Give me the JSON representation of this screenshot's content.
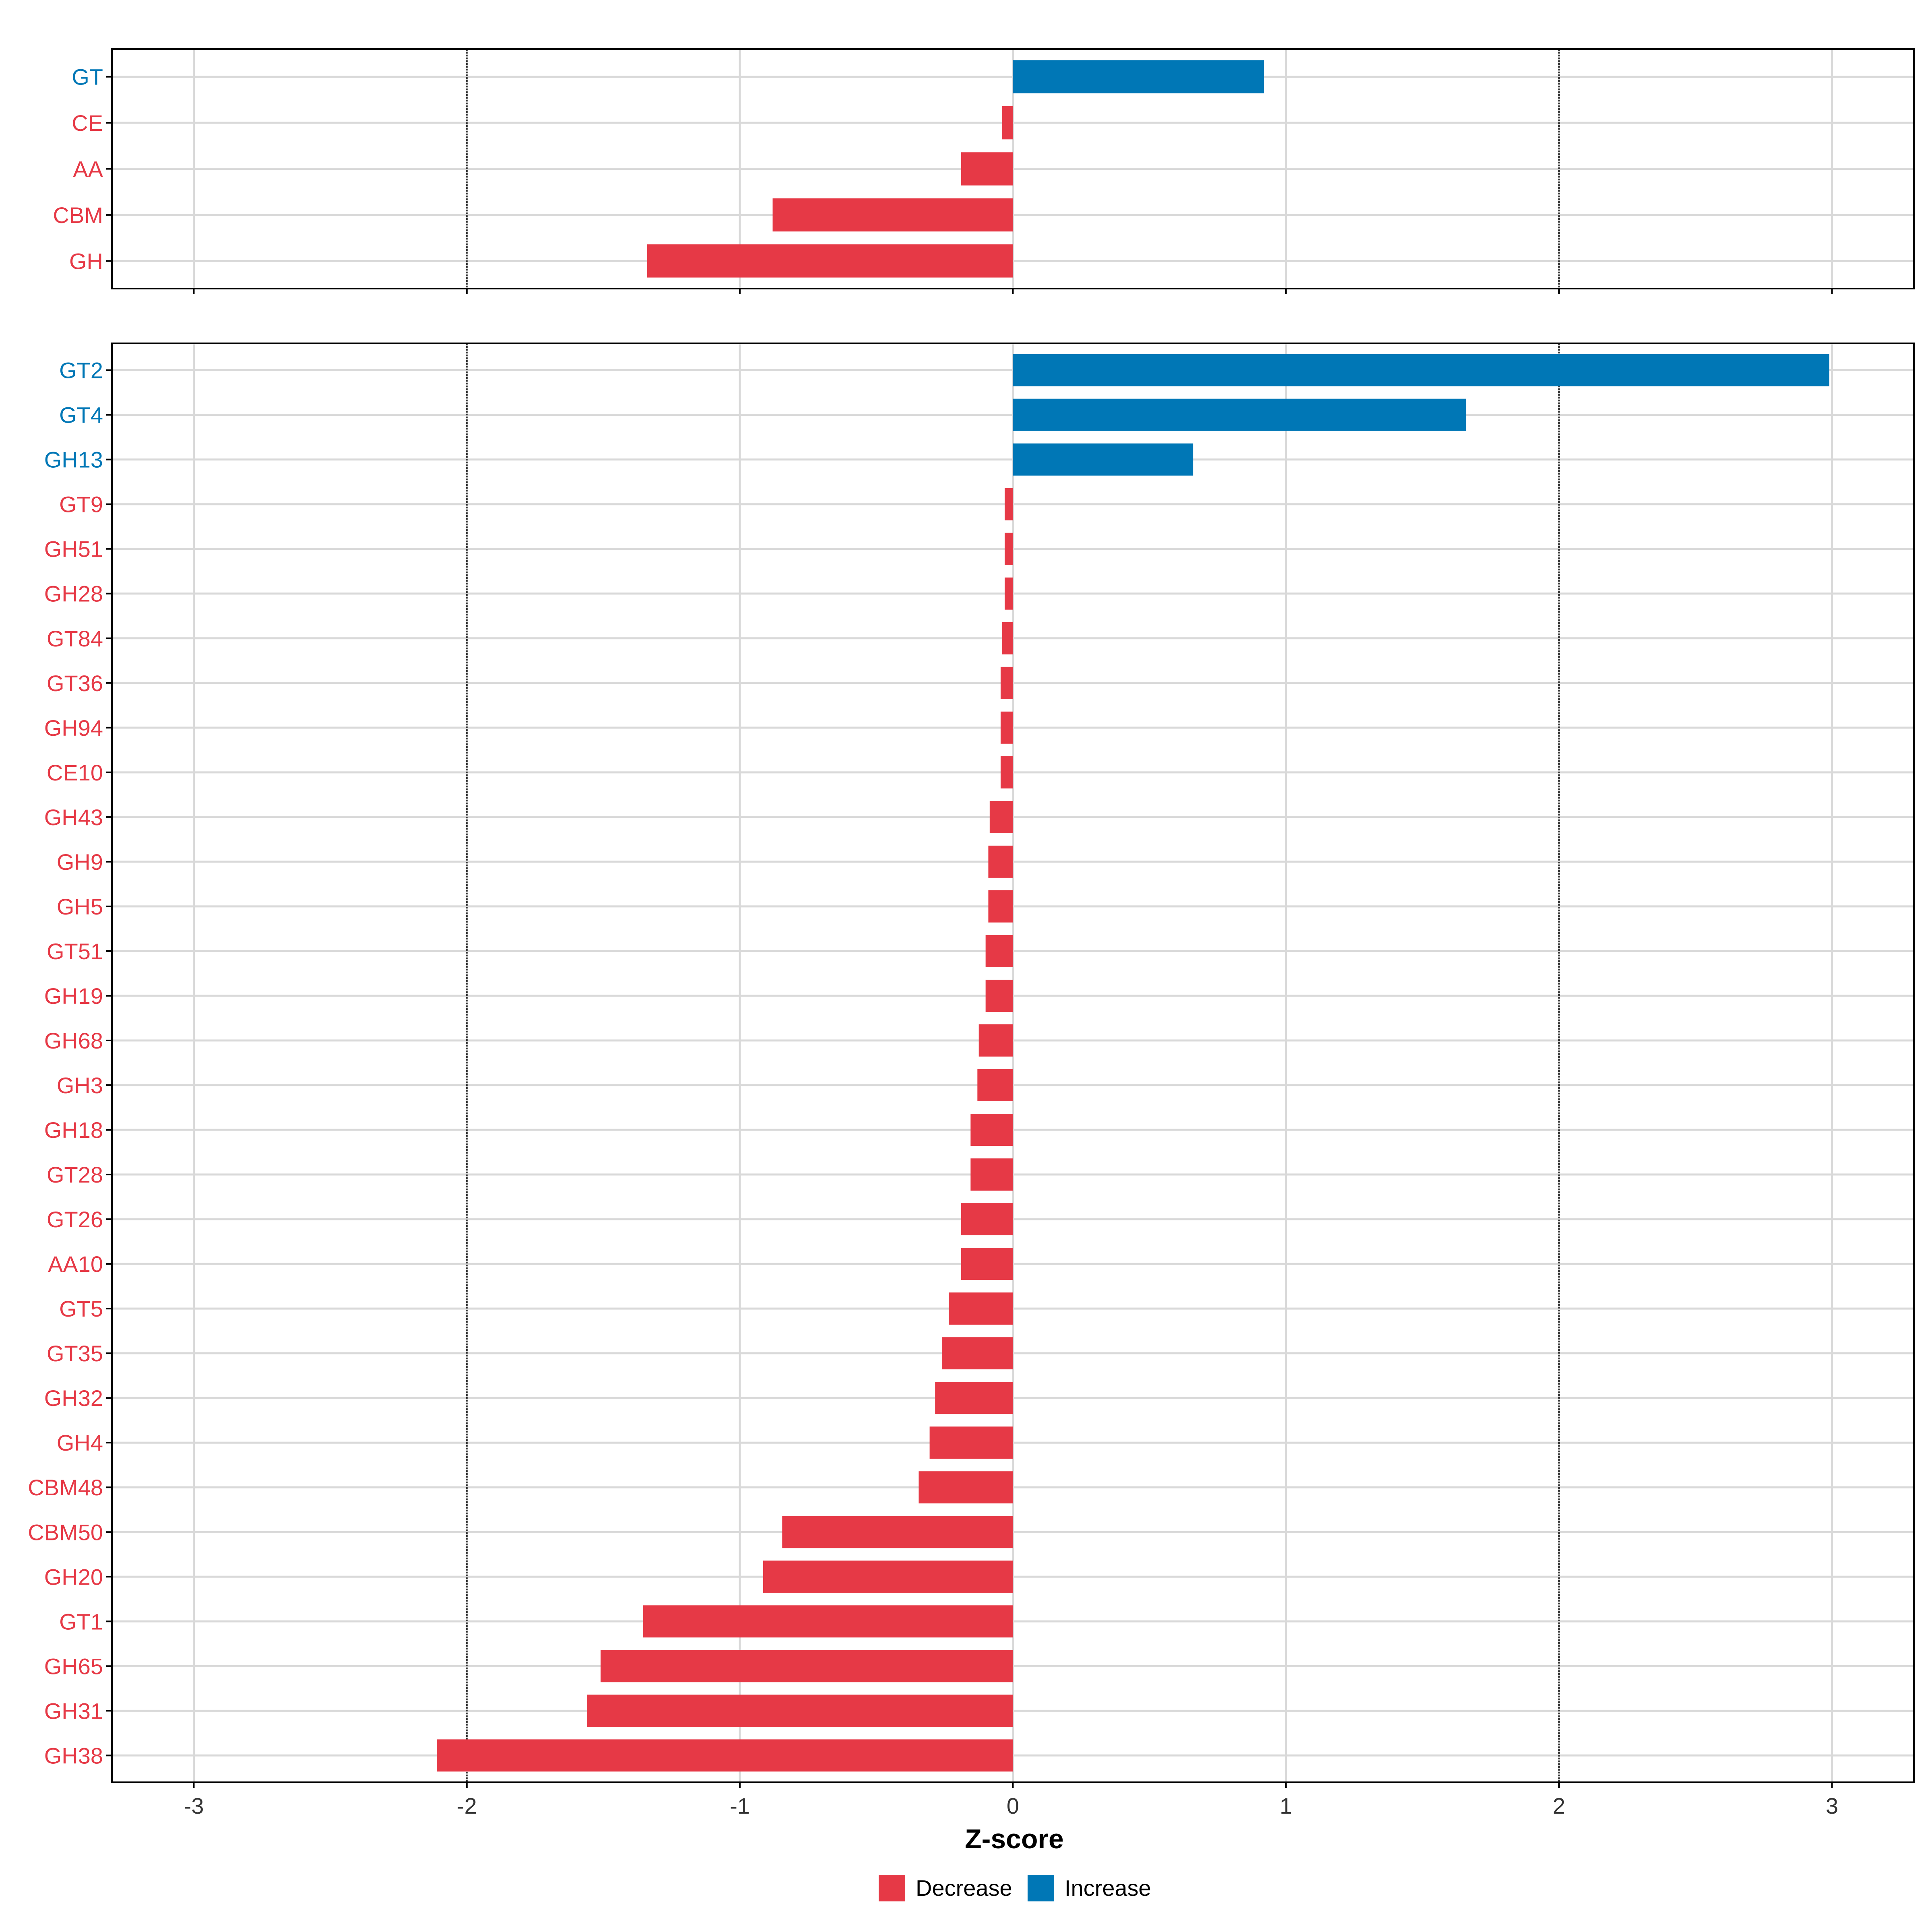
{
  "colors": {
    "decrease": "#E63946",
    "increase": "#0077B6",
    "grid": "#D9D9D9",
    "reference": "#333333",
    "axis": "#000000",
    "tick_text": "#333333"
  },
  "chart_data": [
    {
      "type": "bar",
      "orientation": "horizontal",
      "panel": "top",
      "categories": [
        "GT",
        "CE",
        "AA",
        "CBM",
        "GH"
      ],
      "values": [
        0.92,
        -0.04,
        -0.19,
        -0.88,
        -1.34
      ],
      "direction": [
        "Increase",
        "Decrease",
        "Decrease",
        "Decrease",
        "Decrease"
      ],
      "xlim": [
        -3.3,
        3.3
      ],
      "xticks": [
        -3,
        -2,
        -1,
        0,
        1,
        2,
        3
      ],
      "reference_lines": [
        -2,
        2
      ],
      "grid": true
    },
    {
      "type": "bar",
      "orientation": "horizontal",
      "panel": "bottom",
      "categories": [
        "GT2",
        "GT4",
        "GH13",
        "GT9",
        "GH51",
        "GH28",
        "GT84",
        "GT36",
        "GH94",
        "CE10",
        "GH43",
        "GH9",
        "GH5",
        "GT51",
        "GH19",
        "GH68",
        "GH3",
        "GH18",
        "GT28",
        "GT26",
        "AA10",
        "GT5",
        "GT35",
        "GH32",
        "GH4",
        "CBM48",
        "CBM50",
        "GH20",
        "GT1",
        "GH65",
        "GH31",
        "GH38"
      ],
      "values": [
        2.99,
        1.66,
        0.66,
        -0.03,
        -0.03,
        -0.03,
        -0.04,
        -0.045,
        -0.045,
        -0.045,
        -0.085,
        -0.09,
        -0.09,
        -0.1,
        -0.1,
        -0.125,
        -0.13,
        -0.155,
        -0.155,
        -0.19,
        -0.19,
        -0.235,
        -0.26,
        -0.285,
        -0.305,
        -0.345,
        -0.845,
        -0.915,
        -1.355,
        -1.51,
        -1.56,
        -2.11
      ],
      "direction": [
        "Increase",
        "Increase",
        "Increase",
        "Decrease",
        "Decrease",
        "Decrease",
        "Decrease",
        "Decrease",
        "Decrease",
        "Decrease",
        "Decrease",
        "Decrease",
        "Decrease",
        "Decrease",
        "Decrease",
        "Decrease",
        "Decrease",
        "Decrease",
        "Decrease",
        "Decrease",
        "Decrease",
        "Decrease",
        "Decrease",
        "Decrease",
        "Decrease",
        "Decrease",
        "Decrease",
        "Decrease",
        "Decrease",
        "Decrease",
        "Decrease",
        "Decrease"
      ],
      "xlim": [
        -3.3,
        3.3
      ],
      "xticks": [
        -3,
        -2,
        -1,
        0,
        1,
        2,
        3
      ],
      "xtick_labels": [
        "-3",
        "-2",
        "-1",
        "0",
        "1",
        "2",
        "3"
      ],
      "xlabel": "Z-score",
      "reference_lines": [
        -2,
        2
      ],
      "grid": true
    }
  ],
  "legend": {
    "position": "bottom",
    "items": [
      {
        "label": "Decrease",
        "color_key": "decrease"
      },
      {
        "label": "Increase",
        "color_key": "increase"
      }
    ]
  }
}
